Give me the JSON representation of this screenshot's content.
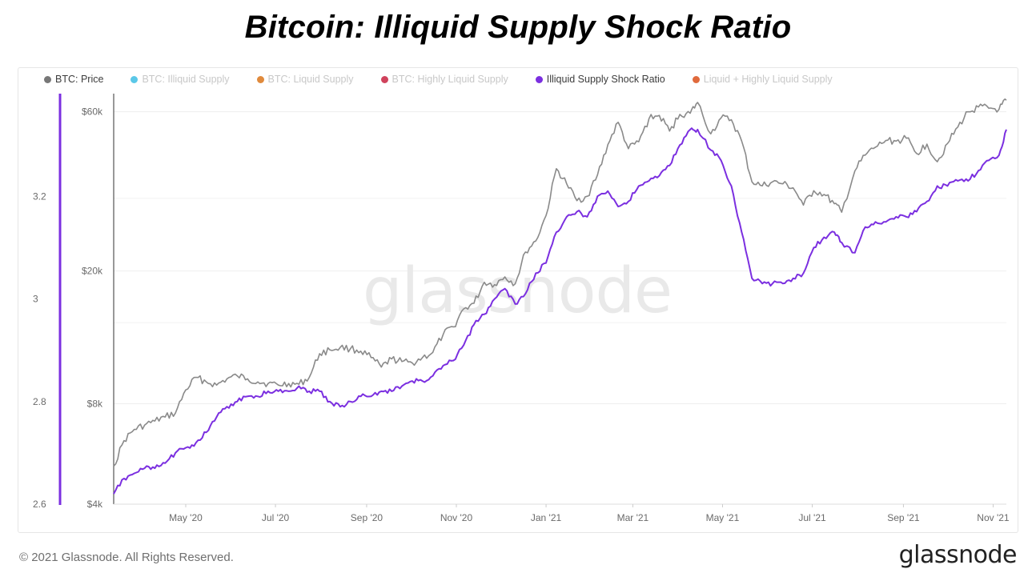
{
  "title": "Bitcoin: Illiquid Supply Shock Ratio",
  "footer": {
    "copyright": "© 2021 Glassnode. All Rights Reserved.",
    "logo": "glassnode"
  },
  "watermark": "glassnode",
  "legend": [
    {
      "label": "BTC: Price",
      "color": "#777777",
      "active": true
    },
    {
      "label": "BTC: Illiquid Supply",
      "color": "#5bc8e8",
      "active": false
    },
    {
      "label": "BTC: Liquid Supply",
      "color": "#e08a3c",
      "active": false
    },
    {
      "label": "BTC: Highly Liquid Supply",
      "color": "#d0425c",
      "active": false
    },
    {
      "label": "Illiquid Supply Shock Ratio",
      "color": "#7b2fe0",
      "active": true
    },
    {
      "label": "Liquid + Highly Liquid Supply",
      "color": "#e06a3c",
      "active": false
    }
  ],
  "chart_data": {
    "type": "line",
    "title": "Bitcoin: Illiquid Supply Shock Ratio",
    "x_axis": {
      "ticks": [
        "May '20",
        "Jul '20",
        "Sep '20",
        "Nov '20",
        "Jan '21",
        "Mar '21",
        "May '21",
        "Jul '21",
        "Sep '21",
        "Nov '21"
      ],
      "range": [
        "2020-03-13",
        "2021-11-10"
      ]
    },
    "y_axis_left": {
      "ticks": [
        "3.2",
        "3",
        "2.8",
        "2.6"
      ],
      "range": [
        2.6,
        3.4
      ]
    },
    "y_axis_right_price": {
      "ticks": [
        "$60k",
        "$20k",
        "$8k",
        "$4k"
      ],
      "scale": "log",
      "range": [
        4000,
        68000
      ]
    },
    "grid": true,
    "legend_position": "top",
    "colors": {
      "price": "#8a8a8a",
      "ratio": "#7b2fe0"
    },
    "series": [
      {
        "name": "BTC: Price",
        "axis": "price",
        "x": [
          "2020-03-13",
          "2020-03-20",
          "2020-03-27",
          "2020-04-03",
          "2020-04-10",
          "2020-04-17",
          "2020-04-24",
          "2020-05-01",
          "2020-05-08",
          "2020-05-15",
          "2020-05-22",
          "2020-05-29",
          "2020-06-05",
          "2020-06-12",
          "2020-06-19",
          "2020-06-26",
          "2020-07-03",
          "2020-07-10",
          "2020-07-17",
          "2020-07-24",
          "2020-07-31",
          "2020-08-07",
          "2020-08-14",
          "2020-08-21",
          "2020-08-28",
          "2020-09-04",
          "2020-09-11",
          "2020-09-18",
          "2020-09-25",
          "2020-10-02",
          "2020-10-09",
          "2020-10-16",
          "2020-10-23",
          "2020-10-30",
          "2020-11-06",
          "2020-11-13",
          "2020-11-20",
          "2020-11-27",
          "2020-12-04",
          "2020-12-11",
          "2020-12-18",
          "2020-12-25",
          "2021-01-01",
          "2021-01-08",
          "2021-01-15",
          "2021-01-22",
          "2021-01-29",
          "2021-02-05",
          "2021-02-12",
          "2021-02-19",
          "2021-02-26",
          "2021-03-05",
          "2021-03-12",
          "2021-03-19",
          "2021-03-26",
          "2021-04-02",
          "2021-04-09",
          "2021-04-14",
          "2021-04-23",
          "2021-04-30",
          "2021-05-07",
          "2021-05-14",
          "2021-05-21",
          "2021-05-28",
          "2021-06-04",
          "2021-06-11",
          "2021-06-18",
          "2021-06-25",
          "2021-07-02",
          "2021-07-09",
          "2021-07-16",
          "2021-07-21",
          "2021-07-30",
          "2021-08-06",
          "2021-08-13",
          "2021-08-20",
          "2021-08-27",
          "2021-09-03",
          "2021-09-10",
          "2021-09-17",
          "2021-09-24",
          "2021-10-01",
          "2021-10-08",
          "2021-10-15",
          "2021-10-22",
          "2021-10-29",
          "2021-11-05",
          "2021-11-10"
        ],
        "values": [
          5200,
          6200,
          6700,
          6900,
          7100,
          7300,
          7500,
          8800,
          9600,
          9300,
          9100,
          9500,
          9700,
          9500,
          9300,
          9200,
          9100,
          9200,
          9150,
          9600,
          11300,
          11600,
          11800,
          11700,
          11500,
          11000,
          10300,
          10900,
          10700,
          10600,
          11000,
          11400,
          12900,
          13600,
          15400,
          16000,
          18500,
          18200,
          19200,
          18300,
          22800,
          24600,
          29300,
          40500,
          36500,
          32500,
          33500,
          38800,
          47800,
          55800,
          46500,
          48800,
          57200,
          58500,
          52500,
          58900,
          59400,
          64000,
          51500,
          57500,
          56800,
          49000,
          37000,
          36000,
          37000,
          36500,
          35500,
          31500,
          34800,
          33900,
          31800,
          30000,
          39900,
          44500,
          47000,
          49200,
          49000,
          50000,
          45000,
          48000,
          42500,
          48200,
          54000,
          60000,
          62000,
          61500,
          61000,
          65000
        ]
      },
      {
        "name": "Illiquid Supply Shock Ratio",
        "axis": "ratio",
        "x": [
          "2020-03-13",
          "2020-03-20",
          "2020-03-27",
          "2020-04-03",
          "2020-04-10",
          "2020-04-17",
          "2020-04-24",
          "2020-05-01",
          "2020-05-08",
          "2020-05-15",
          "2020-05-22",
          "2020-05-29",
          "2020-06-05",
          "2020-06-12",
          "2020-06-19",
          "2020-06-26",
          "2020-07-03",
          "2020-07-10",
          "2020-07-17",
          "2020-07-24",
          "2020-07-31",
          "2020-08-07",
          "2020-08-14",
          "2020-08-21",
          "2020-08-28",
          "2020-09-04",
          "2020-09-11",
          "2020-09-18",
          "2020-09-25",
          "2020-10-02",
          "2020-10-09",
          "2020-10-16",
          "2020-10-23",
          "2020-10-30",
          "2020-11-06",
          "2020-11-13",
          "2020-11-20",
          "2020-11-27",
          "2020-12-04",
          "2020-12-11",
          "2020-12-18",
          "2020-12-25",
          "2021-01-01",
          "2021-01-08",
          "2021-01-15",
          "2021-01-22",
          "2021-01-29",
          "2021-02-05",
          "2021-02-12",
          "2021-02-19",
          "2021-02-26",
          "2021-03-05",
          "2021-03-12",
          "2021-03-19",
          "2021-03-26",
          "2021-04-02",
          "2021-04-09",
          "2021-04-14",
          "2021-04-23",
          "2021-04-30",
          "2021-05-07",
          "2021-05-14",
          "2021-05-21",
          "2021-05-28",
          "2021-06-04",
          "2021-06-11",
          "2021-06-18",
          "2021-06-25",
          "2021-07-02",
          "2021-07-09",
          "2021-07-16",
          "2021-07-21",
          "2021-07-30",
          "2021-08-06",
          "2021-08-13",
          "2021-08-20",
          "2021-08-27",
          "2021-09-03",
          "2021-09-10",
          "2021-09-17",
          "2021-09-24",
          "2021-10-01",
          "2021-10-08",
          "2021-10-15",
          "2021-10-22",
          "2021-10-29",
          "2021-11-05",
          "2021-11-10"
        ],
        "values": [
          2.62,
          2.65,
          2.66,
          2.67,
          2.67,
          2.68,
          2.7,
          2.71,
          2.72,
          2.74,
          2.77,
          2.79,
          2.8,
          2.81,
          2.81,
          2.82,
          2.82,
          2.82,
          2.83,
          2.82,
          2.82,
          2.8,
          2.79,
          2.8,
          2.81,
          2.81,
          2.82,
          2.82,
          2.83,
          2.84,
          2.84,
          2.85,
          2.87,
          2.88,
          2.91,
          2.95,
          2.97,
          3.0,
          3.02,
          2.99,
          3.01,
          3.05,
          3.07,
          3.13,
          3.16,
          3.17,
          3.16,
          3.2,
          3.21,
          3.18,
          3.19,
          3.22,
          3.23,
          3.24,
          3.26,
          3.3,
          3.33,
          3.33,
          3.29,
          3.27,
          3.22,
          3.13,
          3.04,
          3.03,
          3.03,
          3.03,
          3.04,
          3.05,
          3.1,
          3.12,
          3.13,
          3.11,
          3.09,
          3.14,
          3.15,
          3.15,
          3.16,
          3.16,
          3.17,
          3.19,
          3.22,
          3.22,
          3.23,
          3.23,
          3.25,
          3.27,
          3.28,
          3.33
        ]
      }
    ]
  }
}
